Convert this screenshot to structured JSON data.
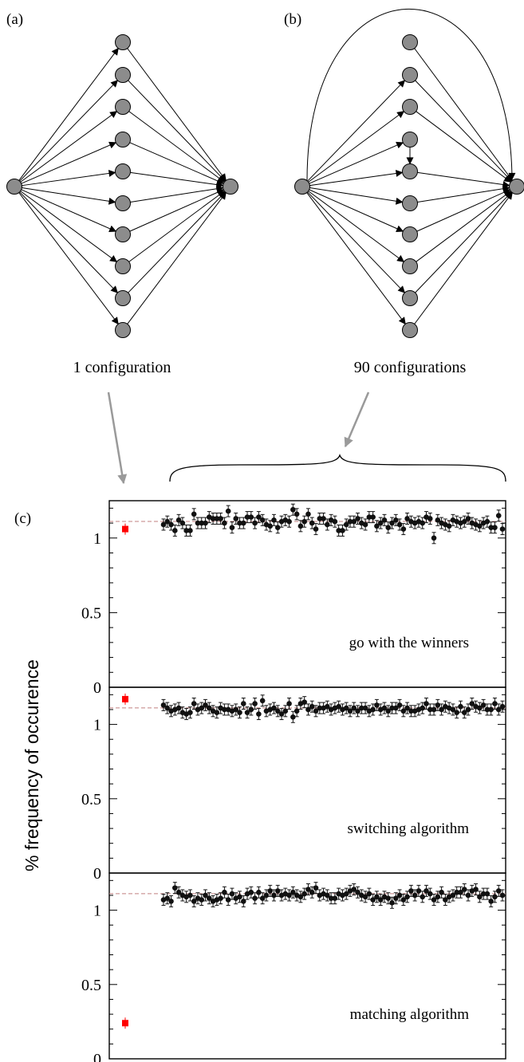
{
  "panels": {
    "a": {
      "label": "(a)",
      "caption": "1 configuration",
      "left_node_count": 10
    },
    "b": {
      "label": "(b)",
      "caption": "90 configurations",
      "left_node_count": 10
    }
  },
  "panel_c_label": "(c)",
  "y_axis_label": "% frequency of occurence",
  "colors": {
    "node_fill": "#8c8c8c",
    "highlight": "#ff0000",
    "reference_line": "#c08080",
    "points": "#111111",
    "arrow_gray": "#9a9a9a"
  },
  "chart_data": {
    "type": "scatter",
    "n_configurations": 90,
    "reference_value": 1.111,
    "subplots": [
      {
        "name": "go with the winners",
        "ylim": [
          0,
          1.25
        ],
        "yticks": [
          "0",
          "0.5",
          "1"
        ],
        "special_point": 1.06,
        "values": [
          1.09,
          1.11,
          1.09,
          1.05,
          1.12,
          1.1,
          1.05,
          1.05,
          1.16,
          1.1,
          1.1,
          1.1,
          1.14,
          1.13,
          1.13,
          1.13,
          1.1,
          1.18,
          1.07,
          1.13,
          1.1,
          1.1,
          1.14,
          1.14,
          1.1,
          1.14,
          1.12,
          1.09,
          1.08,
          1.12,
          1.07,
          1.11,
          1.12,
          1.11,
          1.19,
          1.16,
          1.08,
          1.11,
          1.16,
          1.1,
          1.06,
          1.13,
          1.13,
          1.09,
          1.12,
          1.11,
          1.05,
          1.05,
          1.09,
          1.11,
          1.11,
          1.13,
          1.1,
          1.09,
          1.14,
          1.14,
          1.08,
          1.1,
          1.12,
          1.07,
          1.1,
          1.12,
          1.09,
          1.06,
          1.13,
          1.11,
          1.1,
          1.11,
          1.1,
          1.14,
          1.13,
          1.0,
          1.12,
          1.1,
          1.09,
          1.08,
          1.12,
          1.11,
          1.1,
          1.11,
          1.13,
          1.1,
          1.09,
          1.08,
          1.1,
          1.11,
          1.07,
          1.07,
          1.15,
          1.06
        ]
      },
      {
        "name": "switching algorithm",
        "ylim": [
          0,
          1.25
        ],
        "yticks": [
          "0",
          "0.5",
          "1"
        ],
        "special_point": 1.17,
        "values": [
          1.13,
          1.11,
          1.09,
          1.1,
          1.11,
          1.08,
          1.07,
          1.08,
          1.14,
          1.1,
          1.11,
          1.13,
          1.11,
          1.09,
          1.08,
          1.11,
          1.1,
          1.1,
          1.09,
          1.1,
          1.08,
          1.14,
          1.08,
          1.1,
          1.14,
          1.07,
          1.16,
          1.09,
          1.1,
          1.11,
          1.09,
          1.07,
          1.09,
          1.14,
          1.05,
          1.09,
          1.14,
          1.15,
          1.1,
          1.12,
          1.09,
          1.11,
          1.11,
          1.12,
          1.1,
          1.11,
          1.12,
          1.1,
          1.11,
          1.09,
          1.11,
          1.09,
          1.11,
          1.11,
          1.09,
          1.1,
          1.13,
          1.1,
          1.11,
          1.09,
          1.11,
          1.11,
          1.13,
          1.09,
          1.11,
          1.09,
          1.09,
          1.1,
          1.11,
          1.14,
          1.1,
          1.1,
          1.13,
          1.1,
          1.12,
          1.11,
          1.1,
          1.08,
          1.12,
          1.08,
          1.1,
          1.14,
          1.12,
          1.11,
          1.13,
          1.1,
          1.1,
          1.14,
          1.1,
          1.12
        ]
      },
      {
        "name": "matching algorithm",
        "ylim": [
          0,
          1.25
        ],
        "yticks": [
          "0",
          "0.5",
          "1"
        ],
        "special_point": 0.24,
        "values": [
          1.07,
          1.08,
          1.06,
          1.15,
          1.12,
          1.1,
          1.09,
          1.1,
          1.06,
          1.08,
          1.07,
          1.1,
          1.08,
          1.06,
          1.07,
          1.08,
          1.12,
          1.07,
          1.11,
          1.08,
          1.09,
          1.06,
          1.11,
          1.12,
          1.08,
          1.12,
          1.08,
          1.1,
          1.13,
          1.1,
          1.13,
          1.1,
          1.11,
          1.1,
          1.12,
          1.1,
          1.09,
          1.11,
          1.14,
          1.12,
          1.15,
          1.1,
          1.11,
          1.1,
          1.08,
          1.08,
          1.11,
          1.1,
          1.11,
          1.13,
          1.14,
          1.12,
          1.1,
          1.09,
          1.11,
          1.07,
          1.09,
          1.07,
          1.09,
          1.08,
          1.05,
          1.08,
          1.1,
          1.07,
          1.09,
          1.13,
          1.1,
          1.13,
          1.09,
          1.13,
          1.11,
          1.07,
          1.09,
          1.12,
          1.07,
          1.09,
          1.1,
          1.12,
          1.12,
          1.14,
          1.1,
          1.13,
          1.14,
          1.09,
          1.11,
          1.11,
          1.06,
          1.09,
          1.13,
          1.1
        ]
      }
    ]
  }
}
